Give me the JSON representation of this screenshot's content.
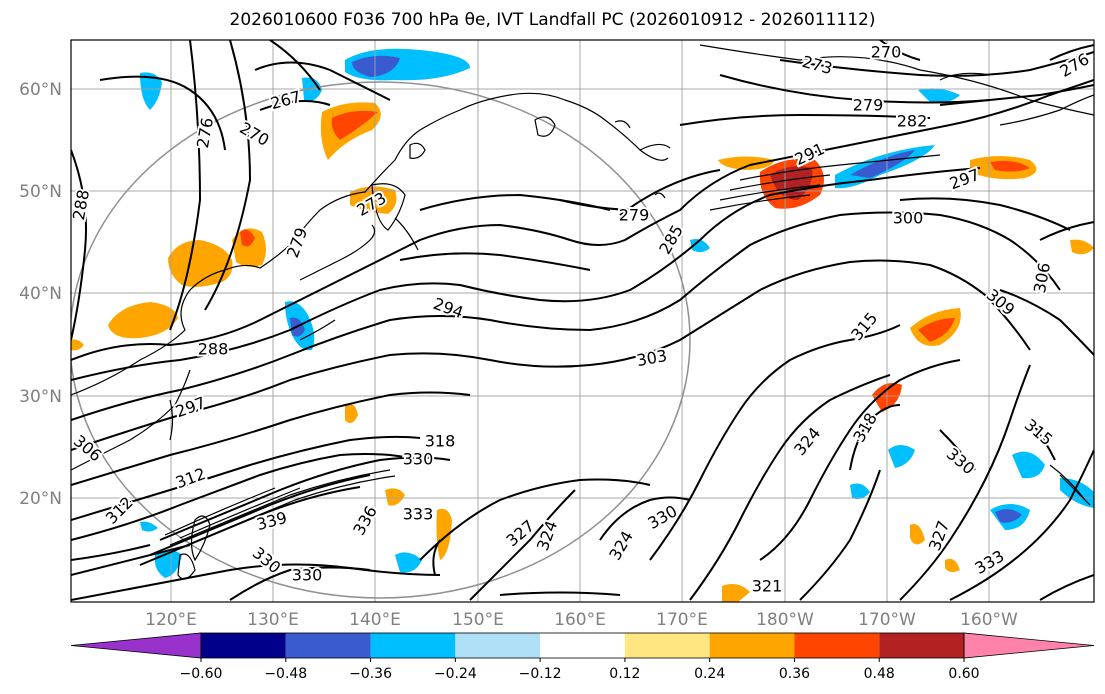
{
  "title": "2026010600 F036 700 hPa θe, IVT Landfall PC (2026010912 - 2026011112)",
  "lat_labels": [
    "60°N",
    "50°N",
    "40°N",
    "30°N",
    "20°N"
  ],
  "lon_labels": [
    "120°E",
    "130°E",
    "140°E",
    "150°E",
    "160°E",
    "170°E",
    "180°W",
    "170°W",
    "160°W"
  ],
  "colorbar": {
    "colors": [
      "#9932cc",
      "#00008b",
      "#3a5bd0",
      "#00bfff",
      "#b0e0f8",
      "#ffffff",
      "#ffe680",
      "#ffa500",
      "#ff4500",
      "#b22222",
      "#ff82ab"
    ],
    "tick_labels": [
      "−0.60",
      "−0.48",
      "−0.36",
      "−0.24",
      "−0.12",
      "0.12",
      "0.24",
      "0.36",
      "0.48",
      "0.60"
    ]
  },
  "contour_labels": [
    "270",
    "273",
    "276",
    "267",
    "270",
    "279",
    "276",
    "282",
    "291",
    "297",
    "288",
    "273",
    "279",
    "279",
    "300",
    "285",
    "294",
    "306",
    "309",
    "288",
    "303",
    "315",
    "297",
    "318",
    "324",
    "318",
    "315",
    "306",
    "330",
    "330",
    "312",
    "312",
    "339",
    "336",
    "333",
    "327",
    "324",
    "324",
    "330",
    "327",
    "333",
    "330",
    "330",
    "321"
  ]
}
